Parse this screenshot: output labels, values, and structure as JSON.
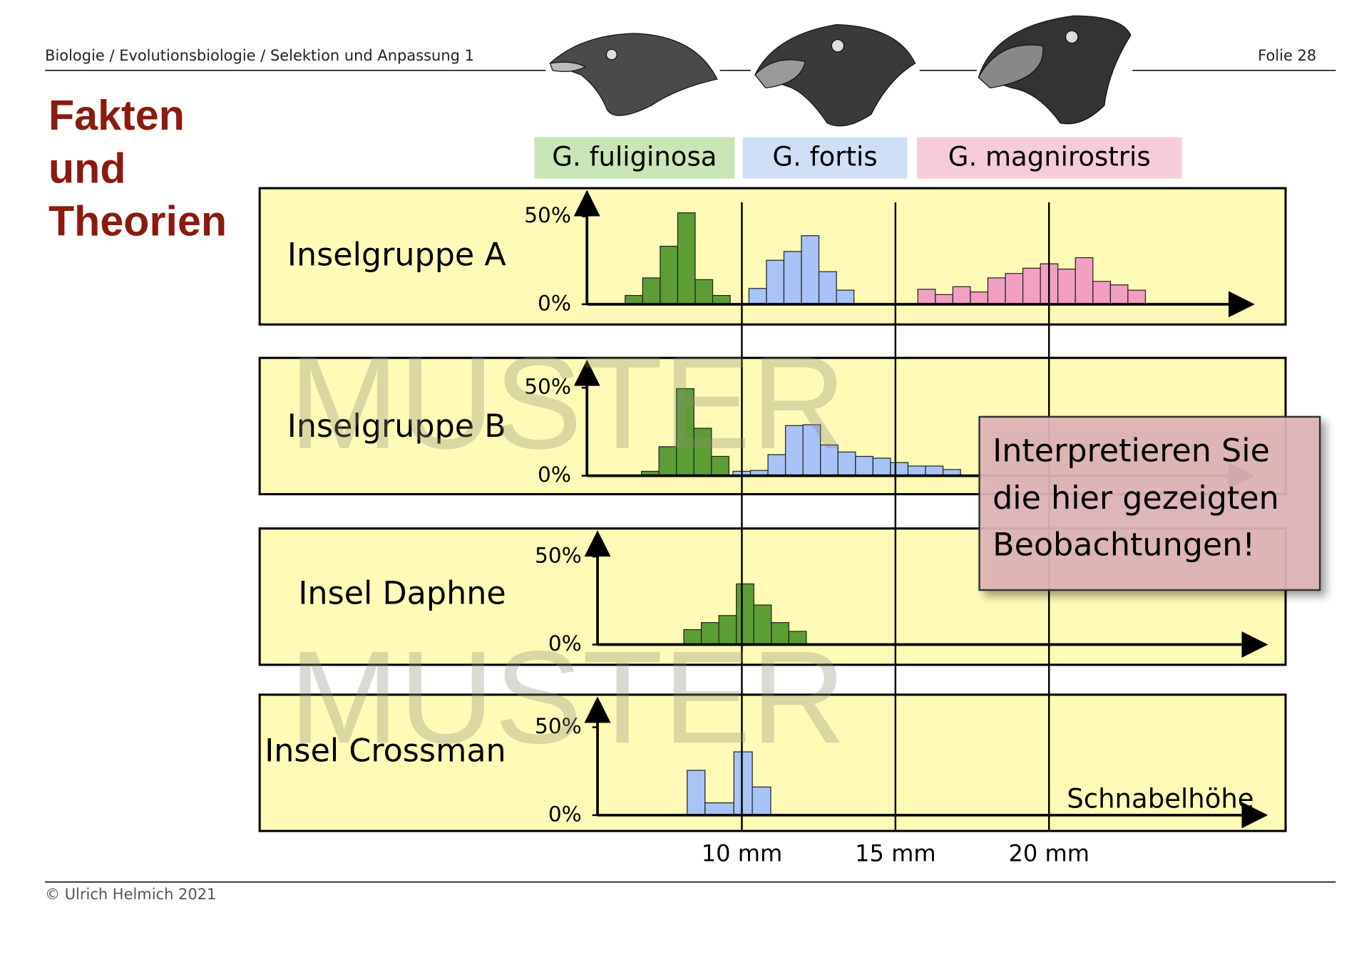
{
  "header": {
    "breadcrumb": "Biologie / Evolutionsbiologie / Selektion und Anpassung 1",
    "slide": "Folie 28"
  },
  "title": [
    "Fakten",
    "und",
    "Theorien"
  ],
  "watermark": "MUSTER",
  "task": [
    "Interpretieren Sie",
    "die hier gezeigten",
    "Beobachtungen!"
  ],
  "footer": "© Ulrich Helmich 2021",
  "chart_data": {
    "type": "histogram",
    "xlabel": "Schnabelhöhe",
    "xlim": [
      5,
      26.5
    ],
    "xticks": [
      {
        "value": 10,
        "label": "10 mm"
      },
      {
        "value": 15,
        "label": "15 mm"
      },
      {
        "value": 20,
        "label": "20 mm"
      }
    ],
    "legend": [
      {
        "name": "G. fuliginosa",
        "color": "#c9e6b6"
      },
      {
        "name": "G. fortis",
        "color": "#cfdff8"
      },
      {
        "name": "G. magnirostris",
        "color": "#f7cbd9"
      }
    ],
    "panels": [
      {
        "title": "Inselgruppe A",
        "ylim": [
          0,
          50
        ],
        "yticks": [
          {
            "value": 0,
            "label": "0%"
          },
          {
            "value": 50,
            "label": "50%"
          }
        ],
        "series": [
          {
            "color": "#5c9e35",
            "bins": [
              6.2,
              6.77,
              7.34,
              7.91,
              8.48,
              9.05,
              9.62
            ],
            "values": [
              5,
              15,
              33,
              52,
              14,
              5
            ]
          },
          {
            "color": "#a8c3f7",
            "bins": [
              10.23,
              10.8,
              11.37,
              11.94,
              12.51,
              13.08,
              13.65
            ],
            "values": [
              9,
              25,
              30,
              39,
              18.5,
              8
            ]
          },
          {
            "color": "#f2a0c2",
            "bins": [
              15.73,
              16.3,
              16.87,
              17.44,
              18.01,
              18.58,
              19.15,
              19.72,
              20.29,
              20.86,
              21.43,
              22.0,
              22.57,
              23.14
            ],
            "values": [
              8.5,
              5.5,
              10,
              7,
              15,
              17.5,
              20.5,
              23,
              20,
              26.5,
              13,
              11,
              8
            ]
          }
        ]
      },
      {
        "title": "Inselgruppe B",
        "ylim": [
          0,
          50
        ],
        "yticks": [
          {
            "value": 0,
            "label": "0%"
          },
          {
            "value": 50,
            "label": "50%"
          }
        ],
        "series": [
          {
            "color": "#5c9e35",
            "bins": [
              6.73,
              7.3,
              7.87,
              8.44,
              9.01,
              9.58
            ],
            "values": [
              2.5,
              16.5,
              49.5,
              27,
              11
            ]
          },
          {
            "color": "#a8c3f7",
            "bins": [
              9.71,
              10.28,
              10.85,
              11.42,
              11.99,
              12.56,
              13.13,
              13.7,
              14.27,
              14.84,
              15.41,
              15.98,
              16.55,
              17.12
            ],
            "values": [
              2.5,
              3,
              12,
              28.5,
              29,
              17.5,
              13.5,
              11,
              10,
              7.5,
              5.5,
              5.5,
              3.5
            ]
          }
        ]
      },
      {
        "title": "Insel Daphne",
        "ylim": [
          0,
          50
        ],
        "yticks": [
          {
            "value": 0,
            "label": "0%"
          },
          {
            "value": 50,
            "label": "50%"
          }
        ],
        "series": [
          {
            "color": "#5c9e35",
            "bins": [
              8.11,
              8.68,
              9.25,
              9.82,
              10.39,
              10.96,
              11.53,
              12.1
            ],
            "values": [
              8.5,
              12.5,
              16.5,
              34.5,
              22.5,
              12.5,
              7.5
            ]
          }
        ]
      },
      {
        "title": "Insel Crossman",
        "ylim": [
          0,
          50
        ],
        "yticks": [
          {
            "value": 0,
            "label": "0%"
          },
          {
            "value": 50,
            "label": "50%"
          }
        ],
        "series": [
          {
            "color": "#a8c3f7",
            "bins": [
              8.22,
              8.8,
              9.74,
              10.34,
              10.94
            ],
            "values": [
              25.5,
              7,
              36,
              16
            ]
          }
        ]
      }
    ]
  }
}
